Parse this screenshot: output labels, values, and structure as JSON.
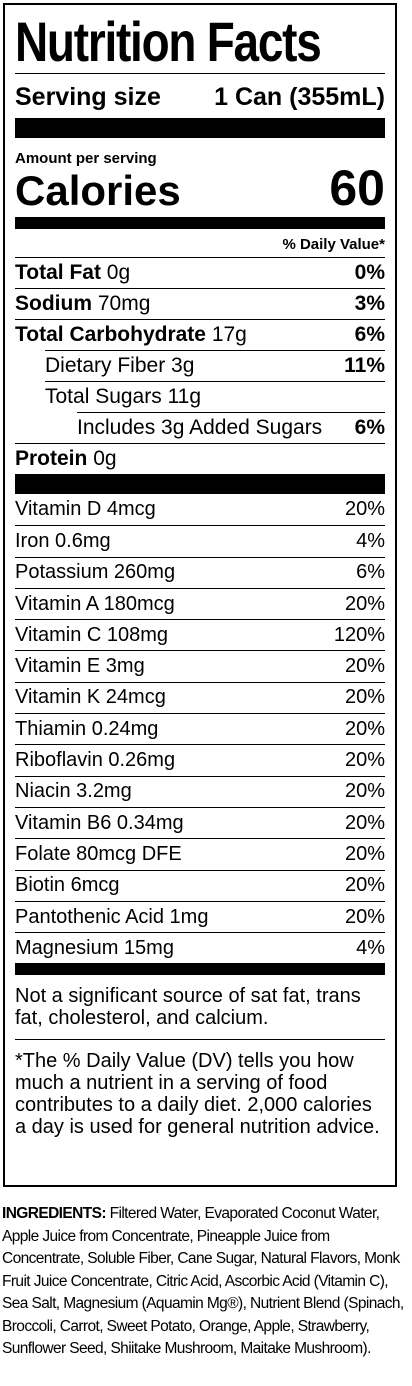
{
  "title": "Nutrition Facts",
  "serving": {
    "label": "Serving size",
    "value": "1 Can (355mL)"
  },
  "amount_per_serving": "Amount per serving",
  "calories": {
    "label": "Calories",
    "value": "60"
  },
  "daily_value_header": "% Daily Value*",
  "nutrients": [
    {
      "name": "Total Fat",
      "amount": "0g",
      "dv": "0%"
    },
    {
      "name": "Sodium",
      "amount": "70mg",
      "dv": "3%"
    },
    {
      "name": "Total Carbohydrate",
      "amount": "17g",
      "dv": "6%"
    },
    {
      "name": "Dietary Fiber 3g",
      "dv": "11%"
    },
    {
      "name": "Total Sugars 11g",
      "dv": ""
    },
    {
      "name": "Includes 3g Added Sugars",
      "dv": "6%"
    },
    {
      "name": "Protein",
      "amount": "0g",
      "dv": ""
    }
  ],
  "vitamins": [
    {
      "name": "Vitamin D 4mcg",
      "dv": "20%"
    },
    {
      "name": "Iron 0.6mg",
      "dv": "4%"
    },
    {
      "name": "Potassium 260mg",
      "dv": "6%"
    },
    {
      "name": "Vitamin A 180mcg",
      "dv": "20%"
    },
    {
      "name": "Vitamin C 108mg",
      "dv": "120%"
    },
    {
      "name": "Vitamin E 3mg",
      "dv": "20%"
    },
    {
      "name": "Vitamin K 24mcg",
      "dv": "20%"
    },
    {
      "name": "Thiamin 0.24mg",
      "dv": "20%"
    },
    {
      "name": "Riboflavin 0.26mg",
      "dv": "20%"
    },
    {
      "name": "Niacin 3.2mg",
      "dv": "20%"
    },
    {
      "name": "Vitamin B6 0.34mg",
      "dv": "20%"
    },
    {
      "name": "Folate 80mcg DFE",
      "dv": "20%"
    },
    {
      "name": "Biotin 6mcg",
      "dv": "20%"
    },
    {
      "name": "Pantothenic Acid 1mg",
      "dv": "20%"
    },
    {
      "name": "Magnesium 15mg",
      "dv": "4%"
    }
  ],
  "footnote_1": "Not a significant source of sat fat, trans fat, cholesterol, and calcium.",
  "footnote_2": "*The % Daily Value (DV) tells you how much a nutrient in a serving of food contributes to a daily diet. 2,000 calories a day is used for general nutrition advice.",
  "ingredients": {
    "label": "INGREDIENTS:",
    "text": "Filtered Water, Evaporated Coconut Water, Apple Juice from Concentrate, Pineapple Juice from Concentrate, Soluble Fiber, Cane Sugar, Natural Flavors, Monk Fruit Juice Concentrate, Citric Acid, Ascorbic Acid (Vitamin C), Sea Salt, Magnesium (Aquamin Mg®), Nutrient Blend (Spinach, Broccoli, Carrot, Sweet Potato, Orange, Apple, Strawberry, Sunflower Seed, Shiitake Mushroom, Maitake Mushroom)."
  }
}
